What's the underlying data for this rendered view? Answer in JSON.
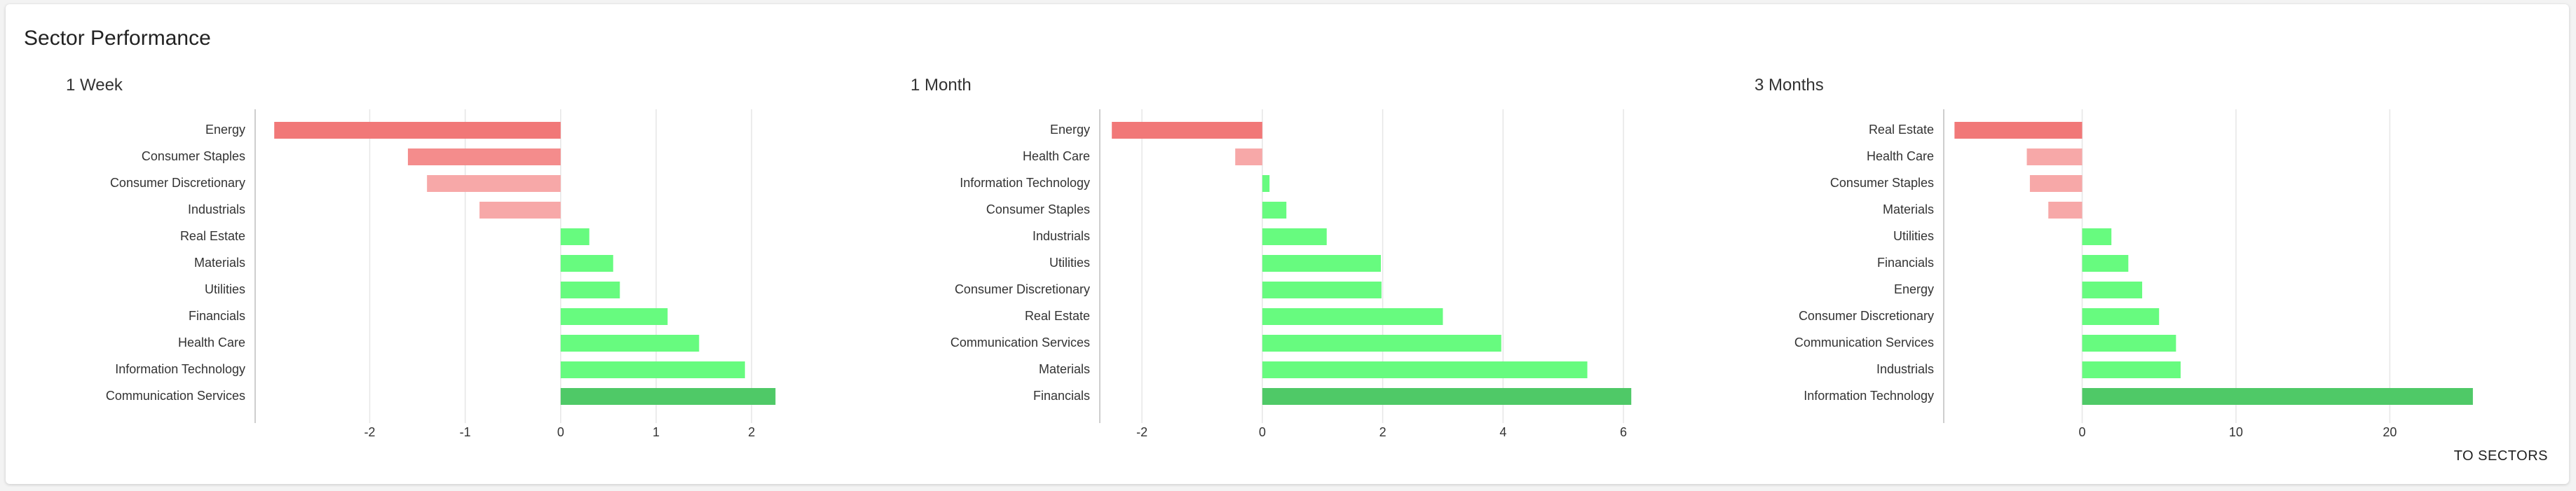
{
  "title": "Sector Performance",
  "link_label": "TO SECTORS",
  "colors": {
    "neg_strong": "#f17878",
    "neg_mid": "#f48c8c",
    "neg_light": "#f7a8a8",
    "pos_light": "#67fb7f",
    "pos_strong": "#4fc967",
    "grid": "#e6e6e6",
    "axis": "#bdbdbd"
  },
  "chart_data": [
    {
      "type": "bar",
      "orientation": "horizontal",
      "title": "1 Week",
      "categories": [
        "Energy",
        "Consumer Staples",
        "Consumer Discretionary",
        "Industrials",
        "Real Estate",
        "Materials",
        "Utilities",
        "Financials",
        "Health Care",
        "Information Technology",
        "Communication Services"
      ],
      "values": [
        -3.0,
        -1.6,
        -1.4,
        -0.85,
        0.3,
        0.55,
        0.62,
        1.12,
        1.45,
        1.93,
        2.25
      ],
      "xlim": [
        -3.2,
        2.6
      ],
      "xticks": [
        -2,
        -1,
        0,
        1,
        2
      ],
      "grid": true
    },
    {
      "type": "bar",
      "orientation": "horizontal",
      "title": "1 Month",
      "categories": [
        "Energy",
        "Health Care",
        "Information Technology",
        "Consumer Staples",
        "Industrials",
        "Utilities",
        "Consumer Discretionary",
        "Real Estate",
        "Communication Services",
        "Materials",
        "Financials"
      ],
      "values": [
        -2.5,
        -0.45,
        0.12,
        0.4,
        1.07,
        1.97,
        1.98,
        3.0,
        3.97,
        5.4,
        6.13
      ],
      "xlim": [
        -2.7,
        6.5
      ],
      "xticks": [
        -2,
        0,
        2,
        4,
        6
      ],
      "grid": true
    },
    {
      "type": "bar",
      "orientation": "horizontal",
      "title": "3 Months",
      "categories": [
        "Real Estate",
        "Health Care",
        "Consumer Staples",
        "Materials",
        "Utilities",
        "Financials",
        "Energy",
        "Consumer Discretionary",
        "Communication Services",
        "Industrials",
        "Information Technology"
      ],
      "values": [
        -8.3,
        -3.6,
        -3.4,
        -2.2,
        1.9,
        3.0,
        3.9,
        5.0,
        6.1,
        6.4,
        25.4
      ],
      "xlim": [
        -9,
        27
      ],
      "xticks": [
        0,
        10,
        20
      ],
      "grid": true
    }
  ]
}
